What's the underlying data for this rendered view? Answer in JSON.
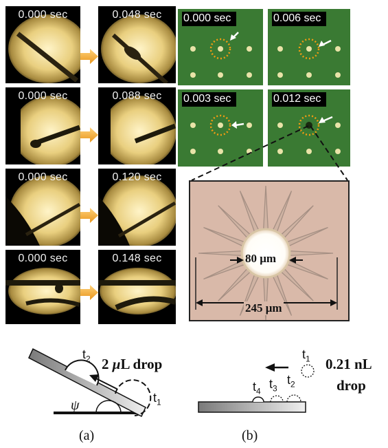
{
  "left_panel": {
    "rows": [
      {
        "before": "0.000 sec",
        "after": "0.048 sec"
      },
      {
        "before": "0.000 sec",
        "after": "0.088 sec"
      },
      {
        "before": "0.000 sec",
        "after": "0.120 sec"
      },
      {
        "before": "0.000 sec",
        "after": "0.148 sec"
      }
    ]
  },
  "right_panel": {
    "frames": [
      {
        "time": "0.000 sec"
      },
      {
        "time": "0.006 sec"
      },
      {
        "time": "0.003 sec"
      },
      {
        "time": "0.012 sec"
      }
    ],
    "inner_diameter": "80 μm",
    "outer_diameter": "245 μm"
  },
  "diagram_a": {
    "t2": "t",
    "t2_sub": "2",
    "t1": "t",
    "t1_sub": "1",
    "drop_prefix": "2 ",
    "drop_mu": "μ",
    "drop_suffix": "L drop",
    "angle": "ψ",
    "caption": "(a)"
  },
  "diagram_b": {
    "t1": "t",
    "t1_sub": "1",
    "t2": "t",
    "t2_sub": "2",
    "t3": "t",
    "t3_sub": "3",
    "t4": "t",
    "t4_sub": "4",
    "drop_line1": "0.21 nL",
    "drop_line2": "drop",
    "caption": "(b)"
  },
  "colors": {
    "arrow": "#f2a72f",
    "highlight_circle": "#f39c12",
    "green_bg": "#3f7d34"
  }
}
